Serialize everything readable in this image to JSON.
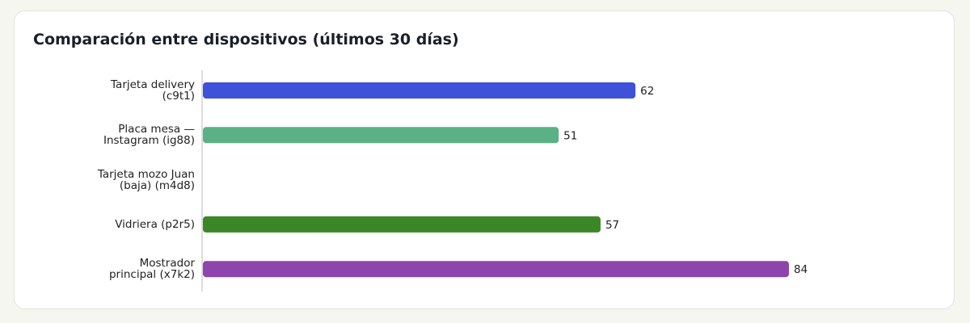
{
  "chart_data": {
    "type": "bar",
    "orientation": "horizontal",
    "title": "Comparación entre dispositivos (últimos 30 días)",
    "categories": [
      "Tarjeta delivery (c9t1)",
      "Placa mesa — Instagram (ig88)",
      "Tarjeta mozo Juan (baja) (m4d8)",
      "Vidriera (p2r5)",
      "Mostrador principal (x7k2)"
    ],
    "values": [
      62,
      51,
      null,
      57,
      84
    ],
    "colors": [
      "#3f51d9",
      "#5bb185",
      null,
      "#3b8728",
      "#8e44ad"
    ]
  }
}
